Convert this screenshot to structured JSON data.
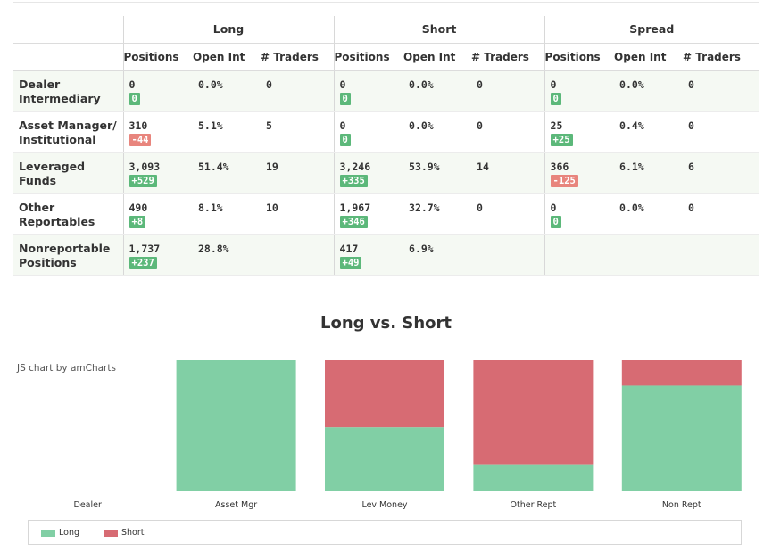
{
  "table": {
    "groups": [
      "Long",
      "Short",
      "Spread"
    ],
    "sub_headers": [
      "Positions",
      "Open Int",
      "# Traders"
    ],
    "rows": [
      {
        "label": [
          "Dealer",
          "Intermediary"
        ],
        "long": {
          "positions": "0",
          "change": "0",
          "dir": "pos",
          "open_int": "0.0%",
          "traders": "0"
        },
        "short": {
          "positions": "0",
          "change": "0",
          "dir": "pos",
          "open_int": "0.0%",
          "traders": "0"
        },
        "spread": {
          "positions": "0",
          "change": "0",
          "dir": "pos",
          "open_int": "0.0%",
          "traders": "0"
        }
      },
      {
        "label": [
          "Asset Manager/",
          "Institutional"
        ],
        "long": {
          "positions": "310",
          "change": "-44",
          "dir": "neg",
          "open_int": "5.1%",
          "traders": "5"
        },
        "short": {
          "positions": "0",
          "change": "0",
          "dir": "pos",
          "open_int": "0.0%",
          "traders": "0"
        },
        "spread": {
          "positions": "25",
          "change": "+25",
          "dir": "pos",
          "open_int": "0.4%",
          "traders": "0"
        }
      },
      {
        "label": [
          "Leveraged",
          "Funds"
        ],
        "long": {
          "positions": "3,093",
          "change": "+529",
          "dir": "pos",
          "open_int": "51.4%",
          "traders": "19"
        },
        "short": {
          "positions": "3,246",
          "change": "+335",
          "dir": "pos",
          "open_int": "53.9%",
          "traders": "14"
        },
        "spread": {
          "positions": "366",
          "change": "-125",
          "dir": "neg",
          "open_int": "6.1%",
          "traders": "6"
        }
      },
      {
        "label": [
          "Other",
          "Reportables"
        ],
        "long": {
          "positions": "490",
          "change": "+8",
          "dir": "pos",
          "open_int": "8.1%",
          "traders": "10"
        },
        "short": {
          "positions": "1,967",
          "change": "+346",
          "dir": "pos",
          "open_int": "32.7%",
          "traders": "0"
        },
        "spread": {
          "positions": "0",
          "change": "0",
          "dir": "pos",
          "open_int": "0.0%",
          "traders": "0"
        }
      },
      {
        "label": [
          "Nonreportable",
          "Positions"
        ],
        "long": {
          "positions": "1,737",
          "change": "+237",
          "dir": "pos",
          "open_int": "28.8%",
          "traders": ""
        },
        "short": {
          "positions": "417",
          "change": "+49",
          "dir": "pos",
          "open_int": "6.9%",
          "traders": ""
        },
        "spread": null
      }
    ]
  },
  "chart_credit": "JS chart by amCharts",
  "colors": {
    "long": "#81cfa5",
    "short": "#d76b73"
  },
  "chart_data": {
    "type": "bar",
    "stacked": "100%",
    "title": "Long vs. Short",
    "categories": [
      "Dealer",
      "Asset Mgr",
      "Lev Money",
      "Other Rept",
      "Non Rept"
    ],
    "series": [
      {
        "name": "Long",
        "values": [
          0,
          310,
          3093,
          490,
          1737
        ]
      },
      {
        "name": "Short",
        "values": [
          0,
          0,
          3246,
          1967,
          417
        ]
      }
    ],
    "ylim": [
      0,
      100
    ],
    "grid": false,
    "legend_position": "bottom-left"
  }
}
